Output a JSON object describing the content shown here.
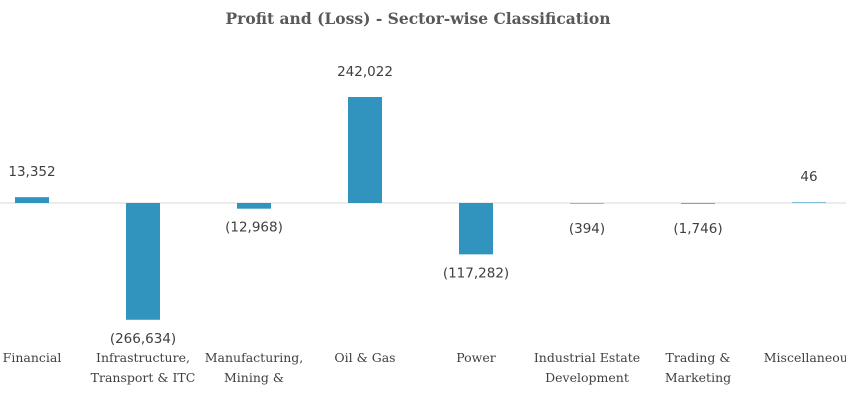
{
  "chart_data": {
    "type": "bar",
    "title": "Profit and (Loss) - Sector-wise Classification",
    "xlabel": "",
    "ylabel": "",
    "categories": [
      [
        "Financial"
      ],
      [
        "Infrastructure,",
        "Transport & ITC"
      ],
      [
        "Manufacturing,",
        "Mining &"
      ],
      [
        "Oil & Gas"
      ],
      [
        "Power"
      ],
      [
        "Industrial Estate",
        "Development"
      ],
      [
        "Trading &",
        "Marketing"
      ],
      [
        "Miscellaneous"
      ]
    ],
    "values": [
      13352,
      -266634,
      -12968,
      242022,
      -117282,
      -394,
      -1746,
      46
    ],
    "data_labels": [
      "13,352",
      "(266,634)",
      "(12,968)",
      "242,022",
      "(117,282)",
      "(394)",
      "(1,746)",
      "46"
    ],
    "bar_color": "#3194be",
    "axis_color": "#d9d9d9",
    "grid": false,
    "legend": "none"
  }
}
